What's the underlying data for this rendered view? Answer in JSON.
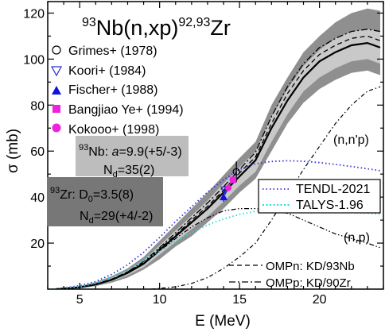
{
  "chart_data": {
    "type": "line",
    "title_parts": {
      "pre": "93",
      "mid": "Nb(n,xp)",
      "sup2": "92,93",
      "post": "Zr"
    },
    "xlabel": "E (MeV)",
    "ylabel": "σ (mb)",
    "xlim": [
      3,
      24
    ],
    "ylim": [
      0,
      125
    ],
    "xticks": [
      5,
      10,
      15,
      20
    ],
    "yticks": [
      20,
      40,
      60,
      80,
      100,
      120
    ],
    "legend_experiments": [
      {
        "label": "Grimes+ (1978)",
        "marker": "open-circle",
        "color": "#000000"
      },
      {
        "label": "Koori+ (1984)",
        "marker": "open-triangle-down",
        "color": "#2a2ad0"
      },
      {
        "label": "Fischer+ (1988)",
        "marker": "filled-triangle-up",
        "color": "#1010e0"
      },
      {
        "label": "Bangjiao Ye+ (1994)",
        "marker": "filled-square",
        "color": "#ee22dd"
      },
      {
        "label": "Kokooo+ (1998)",
        "marker": "filled-circle",
        "color": "#ee22dd"
      }
    ],
    "legend_libraries": [
      {
        "label": "TENDL-2021",
        "color": "#3333dd",
        "style": "dotted"
      },
      {
        "label": "TALYS-1.96",
        "color": "#22dddd",
        "style": "dotted"
      }
    ],
    "legend_omp": [
      {
        "label": "OMPn: KD/93Nb",
        "style": "dashed"
      },
      {
        "label": "OMPp: KD/90Zr",
        "style": "dashdot"
      }
    ],
    "annotations": {
      "nnp": "(n,n'p)",
      "np": "(n,p)",
      "box_nb": {
        "pre": "93",
        "sym": "Nb: ",
        "a_label": "a",
        "rest": "=9.9(+5/-3)",
        "nd_label": "N",
        "nd_sub": "d",
        "nd_val": "=35(2)",
        "color": "#bdbdbd"
      },
      "box_zr": {
        "pre": "93",
        "sym": "Zr: D",
        "d_sub": "0",
        "d_val": "=3.5(8)",
        "nd_label": "N",
        "nd_sub": "d",
        "nd_val": "=29(+4/-2)",
        "color": "#777777"
      }
    },
    "series": [
      {
        "key": "mean",
        "style": "solid",
        "x": [
          3.5,
          5,
          6,
          7,
          8,
          9,
          10,
          11,
          12,
          13,
          14,
          15,
          16,
          17,
          18,
          19,
          20,
          21,
          22,
          23,
          23.8
        ],
        "y": [
          0,
          0.8,
          2,
          4,
          7,
          11,
          17,
          23,
          29,
          35,
          42,
          49,
          56,
          70,
          82,
          92,
          99,
          103,
          106,
          107,
          105
        ]
      },
      {
        "key": "band_inner_upper",
        "style": "fill",
        "x": [
          3.5,
          5,
          6,
          7,
          8,
          9,
          10,
          11,
          12,
          13,
          14,
          15,
          16,
          17,
          18,
          19,
          20,
          21,
          22,
          23,
          23.8
        ],
        "y": [
          0,
          1,
          2.5,
          4.8,
          8,
          12.5,
          19,
          25.5,
          32,
          38.5,
          46,
          53,
          60,
          75,
          87,
          97,
          104,
          109,
          112,
          113,
          112
        ]
      },
      {
        "key": "band_inner_lower",
        "style": "fill",
        "x": [
          3.5,
          5,
          6,
          7,
          8,
          9,
          10,
          11,
          12,
          13,
          14,
          15,
          16,
          17,
          18,
          19,
          20,
          21,
          22,
          23,
          23.8
        ],
        "y": [
          0,
          0.6,
          1.6,
          3.4,
          6,
          9.5,
          15,
          20.5,
          26,
          31.5,
          38,
          45,
          51,
          64,
          76,
          86,
          92,
          96,
          99,
          100,
          98
        ]
      },
      {
        "key": "band_outer_upper",
        "style": "fill",
        "x": [
          3.5,
          5,
          6,
          7,
          8,
          9,
          10,
          11,
          12,
          13,
          14,
          15,
          16,
          17,
          18,
          19,
          20,
          21,
          22,
          23,
          23.8
        ],
        "y": [
          0,
          1.3,
          3,
          5.6,
          9,
          14,
          21,
          28,
          35,
          42,
          49.5,
          57,
          64,
          80,
          92,
          103,
          110,
          116,
          120,
          122,
          121
        ]
      },
      {
        "key": "band_outer_lower",
        "style": "fill",
        "x": [
          3.5,
          5,
          6,
          7,
          8,
          9,
          10,
          11,
          12,
          13,
          14,
          15,
          16,
          17,
          18,
          19,
          20,
          21,
          22,
          23,
          23.8
        ],
        "y": [
          0,
          0.4,
          1.3,
          2.8,
          5,
          8.5,
          13,
          18.5,
          23,
          29,
          35,
          42,
          48,
          60,
          72,
          81,
          87,
          91,
          94,
          95,
          93
        ]
      },
      {
        "key": "omp_n",
        "style": "dashed",
        "x": [
          3.5,
          5,
          6,
          7,
          8,
          9,
          10,
          11,
          12,
          13,
          14,
          15,
          16,
          17,
          18,
          19,
          20,
          21,
          22,
          23,
          23.8
        ],
        "y": [
          0,
          0.9,
          2.2,
          4.3,
          7.5,
          11.5,
          17.5,
          23.5,
          30,
          36,
          43,
          50.5,
          57.5,
          72,
          85,
          95,
          102,
          106,
          109,
          110,
          108
        ]
      },
      {
        "key": "omp_p",
        "style": "dashdot",
        "x": [
          3.5,
          5,
          6,
          7,
          8,
          9,
          10,
          11,
          12,
          13,
          14,
          15,
          16,
          17,
          18,
          19,
          20,
          21,
          22,
          23,
          23.8
        ],
        "y": [
          0,
          0.8,
          2.1,
          4.2,
          7.5,
          12,
          18,
          24.5,
          31,
          37.5,
          44.5,
          52,
          59.5,
          75,
          88,
          98,
          105,
          109,
          112,
          113,
          112
        ]
      },
      {
        "key": "nnp",
        "style": "dashdot-thin",
        "x": [
          9.5,
          10,
          11,
          12,
          13,
          14,
          15,
          16,
          17,
          18,
          19,
          20,
          21,
          22,
          23,
          23.8
        ],
        "y": [
          0,
          0.3,
          1,
          2.5,
          5,
          9,
          14,
          20,
          30,
          41,
          52,
          62,
          72,
          80,
          86,
          88
        ]
      },
      {
        "key": "np",
        "style": "dashdotdot",
        "x": [
          3.5,
          5,
          6,
          7,
          8,
          9,
          10,
          11,
          12,
          13,
          14,
          15,
          16,
          17,
          18,
          19,
          20,
          21,
          22,
          23,
          23.8
        ],
        "y": [
          0,
          0.8,
          2,
          4,
          7,
          11,
          16.5,
          22,
          27,
          31,
          34,
          35,
          35,
          34,
          33,
          30,
          27,
          24,
          22,
          20,
          18
        ]
      },
      {
        "key": "tendl",
        "style": "dotted",
        "color": "#3333dd",
        "x": [
          3.5,
          5,
          6,
          7,
          8,
          9,
          10,
          11,
          12,
          13,
          14,
          15,
          16,
          17,
          18,
          19,
          20,
          21,
          22,
          23,
          23.8
        ],
        "y": [
          0,
          1.5,
          3.3,
          6.4,
          10.6,
          16,
          22.5,
          29.4,
          35.8,
          42.2,
          47.5,
          52,
          54.5,
          55.5,
          55.8,
          55.6,
          55,
          54.2,
          53.3,
          52.3,
          51.5
        ]
      },
      {
        "key": "talys",
        "style": "dotted",
        "color": "#22dddd",
        "x": [
          3.5,
          5,
          6,
          7,
          8,
          9,
          10,
          11,
          12,
          13,
          14,
          15,
          16,
          17,
          18,
          19,
          20,
          21,
          22,
          23,
          23.8
        ],
        "y": [
          0,
          1,
          2.6,
          5.1,
          8.4,
          12.4,
          16.6,
          20.9,
          24.5,
          27.9,
          30.5,
          32.5,
          33.8,
          34.5,
          34.8,
          34.7,
          34.4,
          34,
          33.4,
          33,
          32.6
        ]
      }
    ],
    "experiments": [
      {
        "series": "Grimes+ (1978)",
        "x": [
          14.8
        ],
        "y": [
          51
        ],
        "err": [
          4.5
        ]
      },
      {
        "series": "Koori+ (1984)",
        "x": [
          14.1
        ],
        "y": [
          43
        ],
        "err": [
          2
        ]
      },
      {
        "series": "Fischer+ (1988)",
        "x": [
          14.0
        ],
        "y": [
          40
        ],
        "err": [
          2
        ]
      },
      {
        "series": "Bangjiao Ye+ (1994)",
        "x": [
          14.6
        ],
        "y": [
          47.5
        ],
        "err": [
          1.5
        ]
      },
      {
        "series": "Kokooo+ (1998)",
        "x": [
          14.3
        ],
        "y": [
          44
        ],
        "err": [
          1.5
        ]
      }
    ]
  }
}
